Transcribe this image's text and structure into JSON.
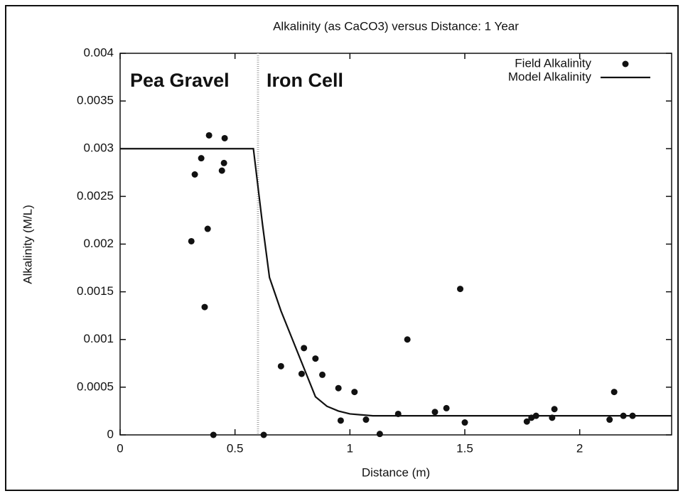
{
  "chart_data": {
    "type": "scatter",
    "title": "Alkalinity (as CaCO3) versus Distance:  1 Year",
    "x_label": "Distance (m)",
    "y_label": "Alkalinity (M/L)",
    "annotations": [
      "Pea Gravel",
      "Iron Cell"
    ],
    "divider_x": 0.6,
    "xlim": [
      0,
      2.4
    ],
    "ylim": [
      0,
      0.004
    ],
    "xticks": [
      0,
      0.5,
      1,
      1.5,
      2
    ],
    "yticks": [
      0,
      0.0005,
      0.001,
      0.0015,
      0.002,
      0.0025,
      0.003,
      0.0035,
      0.004
    ],
    "legend": "upper right",
    "series": [
      {
        "name": "Field Alkalinity",
        "style": "points",
        "color": "#111111",
        "x": [
          0.31,
          0.325,
          0.353,
          0.387,
          0.381,
          0.368,
          0.406,
          0.443,
          0.452,
          0.455,
          0.625,
          0.7,
          0.79,
          0.8,
          0.85,
          0.88,
          0.95,
          0.96,
          1.02,
          1.07,
          1.13,
          1.21,
          1.25,
          1.37,
          1.42,
          1.48,
          1.5,
          1.77,
          1.79,
          1.81,
          1.88,
          1.89,
          2.13,
          2.15,
          2.19,
          2.23
        ],
        "values": [
          0.00203,
          0.00273,
          0.0029,
          0.00314,
          0.00216,
          0.00134,
          0,
          0.00277,
          0.00285,
          0.00311,
          0,
          0.00072,
          0.00064,
          0.00091,
          0.0008,
          0.00063,
          0.00049,
          0.00015,
          0.00045,
          0.00016,
          1e-05,
          0.00022,
          0.001,
          0.00024,
          0.00028,
          0.00153,
          0.00013,
          0.00014,
          0.00018,
          0.0002,
          0.00018,
          0.00027,
          0.00016,
          0.00045,
          0.0002,
          0.0002
        ]
      },
      {
        "name": "Model Alkalinity",
        "style": "line",
        "color": "#111111",
        "x": [
          0,
          0.58,
          0.6,
          0.62,
          0.65,
          0.7,
          0.75,
          0.8,
          0.85,
          0.9,
          0.95,
          1.0,
          1.1,
          1.2,
          2.4
        ],
        "values": [
          0.003,
          0.003,
          0.0026,
          0.0022,
          0.00165,
          0.0013,
          0.001,
          0.0007,
          0.0004,
          0.0003,
          0.00025,
          0.00022,
          0.0002,
          0.0002,
          0.0002
        ]
      }
    ]
  }
}
